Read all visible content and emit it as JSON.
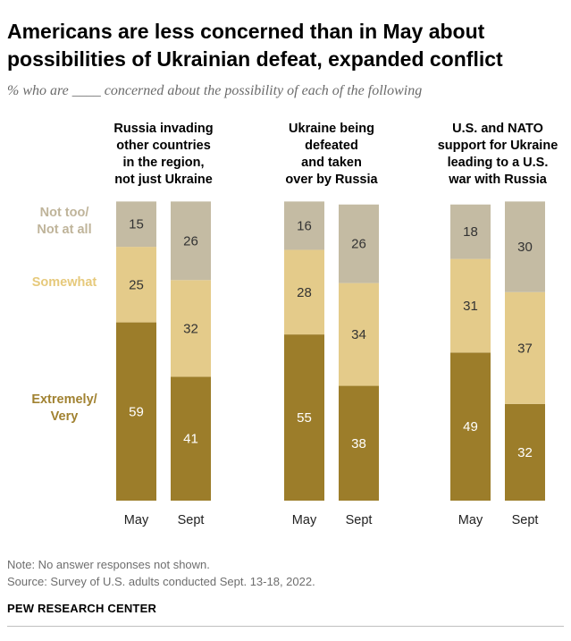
{
  "title": "Americans are less concerned than in May about possibilities of Ukrainian defeat, expanded conflict",
  "subtitle": "% who are ____ concerned about the possibility of each of the following",
  "note": "Note: No answer responses not shown.",
  "source": "Source: Survey of U.S. adults conducted Sept. 13-18, 2022.",
  "brand": "PEW RESEARCH CENTER",
  "chart_data": {
    "type": "bar",
    "stacked": true,
    "categories": [
      "May",
      "Sept"
    ],
    "category_labels": [
      "May",
      "Sept"
    ],
    "legend": {
      "placement": "left",
      "entries": [
        {
          "key": "not_too",
          "lines": [
            "Not too/",
            "Not at all"
          ],
          "color": "#bfb49a"
        },
        {
          "key": "somewhat",
          "lines": [
            "Somewhat"
          ],
          "color": "#e6c97b"
        },
        {
          "key": "extremely",
          "lines": [
            "Extremely/",
            "Very"
          ],
          "color": "#a18231"
        }
      ]
    },
    "colors": {
      "extremely": "#9c7d2a",
      "somewhat": "#e4cb8a",
      "not_too": "#c4bba3",
      "legend_not_too": "#bfb49a",
      "legend_somewhat": "#e6c97b",
      "legend_extremely": "#a18231"
    },
    "panels": [
      {
        "title_lines": [
          "Russia invading",
          "other countries",
          "in the region,",
          "not just Ukraine"
        ],
        "series": [
          {
            "name": "Extremely/Very",
            "key": "extremely",
            "values": [
              59,
              41
            ]
          },
          {
            "name": "Somewhat",
            "key": "somewhat",
            "values": [
              25,
              32
            ]
          },
          {
            "name": "Not too/Not at all",
            "key": "not_too",
            "values": [
              15,
              26
            ]
          }
        ]
      },
      {
        "title_lines": [
          "Ukraine being",
          "defeated",
          "and taken",
          "over by Russia"
        ],
        "series": [
          {
            "name": "Extremely/Very",
            "key": "extremely",
            "values": [
              55,
              38
            ]
          },
          {
            "name": "Somewhat",
            "key": "somewhat",
            "values": [
              28,
              34
            ]
          },
          {
            "name": "Not too/Not at all",
            "key": "not_too",
            "values": [
              16,
              26
            ]
          }
        ]
      },
      {
        "title_lines": [
          "U.S. and NATO",
          "support for Ukraine",
          "leading to a U.S.",
          "war with Russia"
        ],
        "series": [
          {
            "name": "Extremely/Very",
            "key": "extremely",
            "values": [
              49,
              32
            ]
          },
          {
            "name": "Somewhat",
            "key": "somewhat",
            "values": [
              31,
              37
            ]
          },
          {
            "name": "Not too/Not at all",
            "key": "not_too",
            "values": [
              18,
              30
            ]
          }
        ]
      }
    ],
    "ylim": [
      0,
      100
    ]
  }
}
